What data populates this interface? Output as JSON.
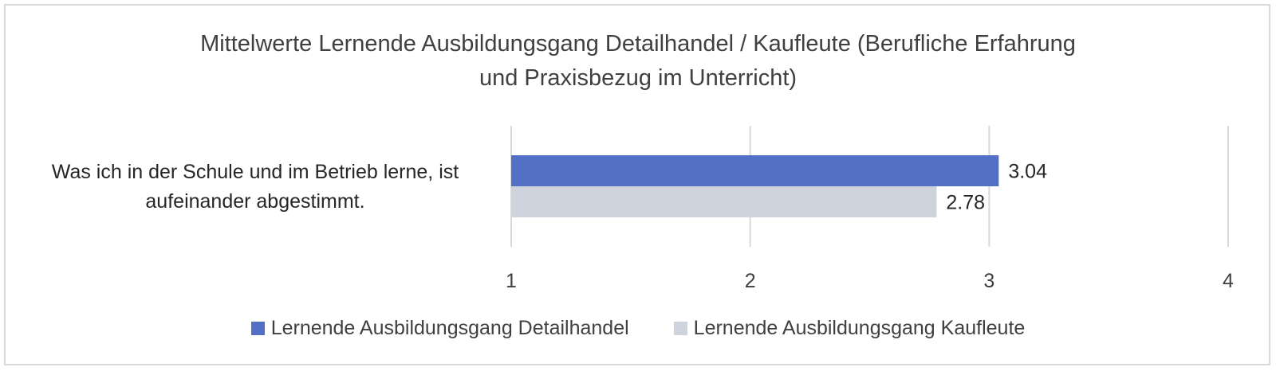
{
  "chart_data": {
    "type": "bar",
    "orientation": "horizontal",
    "title_lines": [
      "Mittelwerte Lernende Ausbildungsgang Detailhandel / Kaufleute (Berufliche Erfahrung",
      "und Praxisbezug im Unterricht)"
    ],
    "categories": [
      {
        "label_lines": [
          "Was ich in der Schule und im Betrieb lerne, ist",
          "aufeinander abgestimmt."
        ]
      }
    ],
    "series": [
      {
        "name": "Lernende Ausbildungsgang Detailhandel",
        "values": [
          3.04
        ],
        "value_labels": [
          "3.04"
        ],
        "color": "#5470c6"
      },
      {
        "name": "Lernende Ausbildungsgang Kaufleute",
        "values": [
          2.78
        ],
        "value_labels": [
          "2.78"
        ],
        "color": "#ced3dd"
      }
    ],
    "xlim": [
      1,
      4
    ],
    "x_ticks": [
      "1",
      "2",
      "3",
      "4"
    ],
    "grid": "vertical",
    "legend_position": "bottom"
  }
}
